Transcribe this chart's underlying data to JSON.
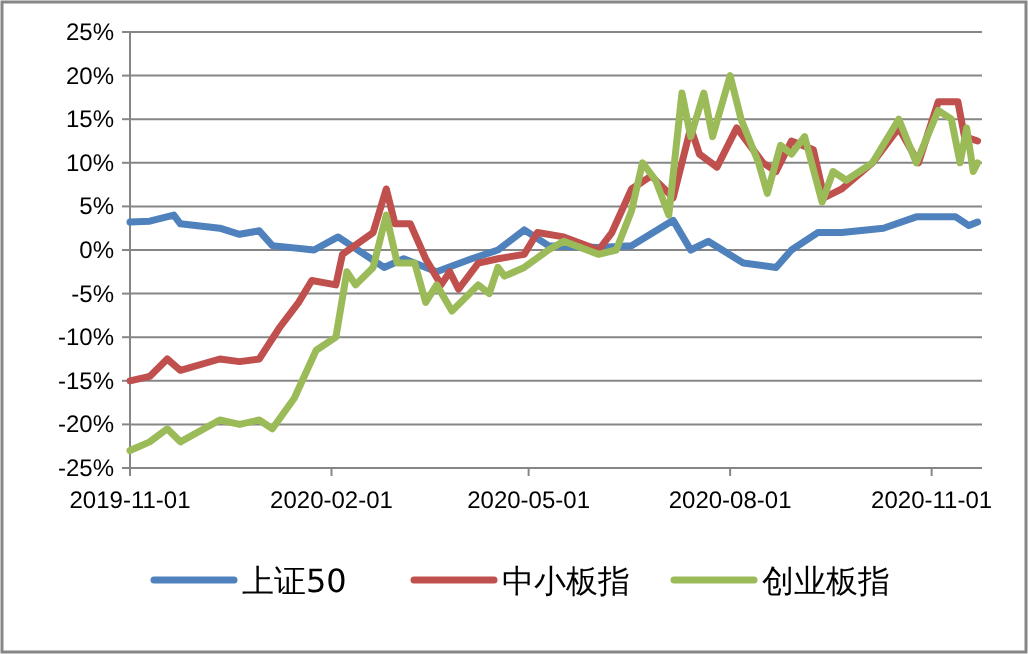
{
  "chart_data": {
    "type": "line",
    "grid": "y",
    "legend": "bottom",
    "marker": "none",
    "line_style": "solid",
    "xlim": [
      "2019-11-01",
      "2020-11-24"
    ],
    "xticks": [
      "2019-11-01",
      "2020-02-01",
      "2020-05-01",
      "2020-08-01",
      "2020-11-01"
    ],
    "ylim": [
      -25,
      25
    ],
    "yticks": [
      {
        "value": -25,
        "label": "-25%"
      },
      {
        "value": -20,
        "label": "-20%"
      },
      {
        "value": -15,
        "label": "-15%"
      },
      {
        "value": -10,
        "label": "-10%"
      },
      {
        "value": -5,
        "label": "-5%"
      },
      {
        "value": 0,
        "label": "0%"
      },
      {
        "value": 5,
        "label": "5%"
      },
      {
        "value": 10,
        "label": "10%"
      },
      {
        "value": 15,
        "label": "15%"
      },
      {
        "value": 20,
        "label": "20%"
      },
      {
        "value": 25,
        "label": "25%"
      }
    ],
    "series": [
      {
        "name": "上证50",
        "color": "#4f81bd",
        "x": [
          "2019-11-01",
          "2019-11-10",
          "2019-11-21",
          "2019-11-24",
          "2019-12-12",
          "2019-12-21",
          "2019-12-30",
          "2020-01-05",
          "2020-01-24",
          "2020-02-04",
          "2020-02-10",
          "2020-02-25",
          "2020-03-05",
          "2020-03-20",
          "2020-04-05",
          "2020-04-17",
          "2020-04-29",
          "2020-05-10",
          "2020-06-02",
          "2020-06-17",
          "2020-07-06",
          "2020-07-14",
          "2020-07-22",
          "2020-08-07",
          "2020-08-22",
          "2020-08-29",
          "2020-09-10",
          "2020-09-21",
          "2020-10-10",
          "2020-10-25",
          "2020-11-12",
          "2020-11-18",
          "2020-11-22"
        ],
        "values": [
          3.2,
          3.3,
          4,
          3,
          2.5,
          1.8,
          2.2,
          0.5,
          0,
          1.5,
          0.5,
          -2,
          -1,
          -2.5,
          -1,
          0,
          2.3,
          0.5,
          0.3,
          0.5,
          3.4,
          0,
          1,
          -1.5,
          -2,
          0,
          2,
          2,
          2.5,
          3.8,
          3.8,
          2.8,
          3.2
        ]
      },
      {
        "name": "中小板指",
        "color": "#c0504d",
        "x": [
          "2019-11-01",
          "2019-11-10",
          "2019-11-18",
          "2019-11-24",
          "2019-12-12",
          "2019-12-21",
          "2019-12-30",
          "2020-01-08",
          "2020-01-17",
          "2020-01-23",
          "2020-02-03",
          "2020-02-06",
          "2020-02-20",
          "2020-02-26",
          "2020-03-01",
          "2020-03-08",
          "2020-03-15",
          "2020-03-22",
          "2020-03-26",
          "2020-03-30",
          "2020-04-08",
          "2020-04-17",
          "2020-04-29",
          "2020-05-05",
          "2020-05-17",
          "2020-06-02",
          "2020-06-08",
          "2020-06-17",
          "2020-06-26",
          "2020-07-06",
          "2020-07-14",
          "2020-07-18",
          "2020-07-26",
          "2020-08-04",
          "2020-08-16",
          "2020-08-22",
          "2020-08-29",
          "2020-09-08",
          "2020-09-13",
          "2020-09-21",
          "2020-10-05",
          "2020-10-17",
          "2020-10-26",
          "2020-11-04",
          "2020-11-13",
          "2020-11-16",
          "2020-11-22"
        ],
        "values": [
          -15,
          -14.5,
          -12.5,
          -13.8,
          -12.5,
          -12.8,
          -12.5,
          -9,
          -6,
          -3.5,
          -4,
          -0.5,
          2,
          7,
          3,
          3,
          -1,
          -4,
          -2.5,
          -4.5,
          -1.5,
          -1,
          -0.5,
          2,
          1.5,
          0,
          2,
          7,
          8.5,
          6,
          14,
          11,
          9.5,
          14,
          10,
          9,
          12.5,
          11.5,
          6,
          7,
          10,
          14,
          10,
          17,
          17,
          13,
          12.5
        ]
      },
      {
        "name": "创业板指",
        "color": "#9bbb59",
        "x": [
          "2019-11-01",
          "2019-11-10",
          "2019-11-18",
          "2019-11-24",
          "2019-12-12",
          "2019-12-21",
          "2019-12-30",
          "2020-01-05",
          "2020-01-15",
          "2020-01-25",
          "2020-02-03",
          "2020-02-08",
          "2020-02-12",
          "2020-02-20",
          "2020-02-26",
          "2020-03-02",
          "2020-03-10",
          "2020-03-15",
          "2020-03-20",
          "2020-03-27",
          "2020-04-08",
          "2020-04-13",
          "2020-04-17",
          "2020-04-20",
          "2020-04-29",
          "2020-05-10",
          "2020-05-17",
          "2020-06-02",
          "2020-06-10",
          "2020-06-17",
          "2020-06-22",
          "2020-06-28",
          "2020-07-04",
          "2020-07-10",
          "2020-07-14",
          "2020-07-20",
          "2020-07-24",
          "2020-08-01",
          "2020-08-06",
          "2020-08-14",
          "2020-08-18",
          "2020-08-24",
          "2020-08-29",
          "2020-09-04",
          "2020-09-12",
          "2020-09-17",
          "2020-09-23",
          "2020-10-05",
          "2020-10-17",
          "2020-10-25",
          "2020-11-04",
          "2020-11-10",
          "2020-11-14",
          "2020-11-17",
          "2020-11-20",
          "2020-11-22"
        ],
        "values": [
          -23,
          -22,
          -20.5,
          -22,
          -19.5,
          -20,
          -19.5,
          -20.5,
          -17,
          -11.5,
          -10,
          -2.5,
          -4,
          -2,
          4,
          -1.5,
          -1.5,
          -6,
          -4,
          -7,
          -4,
          -5,
          -2,
          -3,
          -2,
          0,
          1,
          -0.5,
          0,
          4.5,
          10,
          8,
          4,
          18,
          13,
          18,
          13,
          20,
          15,
          10,
          6.5,
          12,
          11,
          13,
          5.5,
          9,
          8,
          10,
          15,
          10,
          16,
          15,
          10,
          14,
          9,
          10
        ]
      }
    ]
  }
}
